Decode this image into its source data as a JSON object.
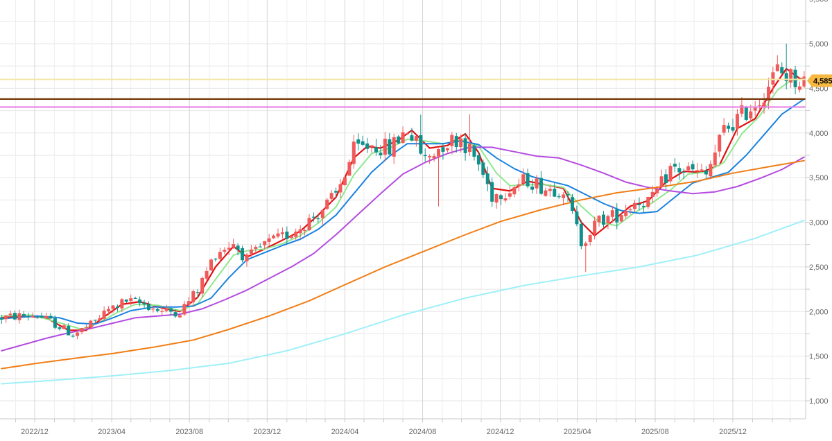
{
  "chart_data": {
    "type": "candlestick",
    "x_tick_labels": [
      "2022/12",
      "2023/04",
      "2023/08",
      "2023/12",
      "2024/04",
      "2024/08",
      "2024/12",
      "2025/04",
      "2025/08",
      "2025/12"
    ],
    "y_tick_labels": [
      "1,000",
      "1,500",
      "2,000",
      "2,500",
      "3,000",
      "3,500",
      "4,000",
      "4,500",
      "5,000",
      "5,500"
    ],
    "y_ticks": [
      1000,
      1500,
      2000,
      2500,
      3000,
      3500,
      4000,
      4500,
      5000,
      5500
    ],
    "ylim": [
      900,
      5500
    ],
    "xlim": [
      "2022-10-10",
      "2026-03-25"
    ],
    "grid": true,
    "last_price_label": "4,585",
    "last_price": 4585,
    "horizontal_levels": [
      {
        "name": "yellow-level",
        "value": 4600,
        "color": "#f3e7a6"
      },
      {
        "name": "brown-level",
        "value": 4380,
        "color": "#7a3d10"
      },
      {
        "name": "magenta-level",
        "value": 4290,
        "color": "#e77ee6"
      }
    ],
    "candles_source": "weekly OHLC",
    "anchors": [
      [
        "2022-10-10",
        1930
      ],
      [
        "2022-11-07",
        1950
      ],
      [
        "2022-12-05",
        1960
      ],
      [
        "2023-01-02",
        1860
      ],
      [
        "2023-01-30",
        1740
      ],
      [
        "2023-02-27",
        1850
      ],
      [
        "2023-03-27",
        2020
      ],
      [
        "2023-04-24",
        2120
      ],
      [
        "2023-05-22",
        2080
      ],
      [
        "2023-06-19",
        2000
      ],
      [
        "2023-07-17",
        2000
      ],
      [
        "2023-08-14",
        2240
      ],
      [
        "2023-09-11",
        2660
      ],
      [
        "2023-10-09",
        2770
      ],
      [
        "2023-10-30",
        2580
      ],
      [
        "2023-11-27",
        2750
      ],
      [
        "2023-12-25",
        2830
      ],
      [
        "2024-01-22",
        2950
      ],
      [
        "2024-02-19",
        3100
      ],
      [
        "2024-03-18",
        3300
      ],
      [
        "2024-04-15",
        3800
      ],
      [
        "2024-05-13",
        3870
      ],
      [
        "2024-06-10",
        3820
      ],
      [
        "2024-07-08",
        4050
      ],
      [
        "2024-08-05",
        3700
      ],
      [
        "2024-09-02",
        3880
      ],
      [
        "2024-09-30",
        3950
      ],
      [
        "2024-10-28",
        3650
      ],
      [
        "2024-11-18",
        3300
      ],
      [
        "2024-12-16",
        3380
      ],
      [
        "2025-01-13",
        3480
      ],
      [
        "2025-02-10",
        3380
      ],
      [
        "2025-03-10",
        3380
      ],
      [
        "2025-04-07",
        2780
      ],
      [
        "2025-05-05",
        3020
      ],
      [
        "2025-06-02",
        3080
      ],
      [
        "2025-06-30",
        3230
      ],
      [
        "2025-07-28",
        3250
      ],
      [
        "2025-08-25",
        3600
      ],
      [
        "2025-09-22",
        3580
      ],
      [
        "2025-10-20",
        3520
      ],
      [
        "2025-11-17",
        4030
      ],
      [
        "2025-12-15",
        4200
      ],
      [
        "2026-01-12",
        4380
      ],
      [
        "2026-02-09",
        4700
      ],
      [
        "2026-03-09",
        4600
      ],
      [
        "2026-03-23",
        4585
      ]
    ],
    "moving_averages": [
      {
        "name": "ma-red",
        "color": "#e01010",
        "width": 2.2,
        "points": [
          [
            "2022-10-10",
            1930
          ],
          [
            "2022-11-14",
            1950
          ],
          [
            "2022-12-19",
            1930
          ],
          [
            "2023-01-23",
            1790
          ],
          [
            "2023-02-20",
            1790
          ],
          [
            "2023-03-20",
            1940
          ],
          [
            "2023-04-17",
            2080
          ],
          [
            "2023-05-15",
            2110
          ],
          [
            "2023-06-19",
            2040
          ],
          [
            "2023-07-17",
            2000
          ],
          [
            "2023-08-14",
            2160
          ],
          [
            "2023-09-11",
            2500
          ],
          [
            "2023-10-09",
            2730
          ],
          [
            "2023-10-30",
            2610
          ],
          [
            "2023-11-27",
            2700
          ],
          [
            "2023-12-25",
            2800
          ],
          [
            "2024-01-22",
            2900
          ],
          [
            "2024-02-19",
            3080
          ],
          [
            "2024-03-18",
            3280
          ],
          [
            "2024-04-15",
            3720
          ],
          [
            "2024-05-06",
            3850
          ],
          [
            "2024-05-27",
            3830
          ],
          [
            "2024-06-24",
            3920
          ],
          [
            "2024-07-15",
            4030
          ],
          [
            "2024-08-12",
            3830
          ],
          [
            "2024-09-09",
            3860
          ],
          [
            "2024-10-07",
            3990
          ],
          [
            "2024-10-28",
            3780
          ],
          [
            "2024-11-18",
            3380
          ],
          [
            "2024-12-16",
            3350
          ],
          [
            "2025-01-13",
            3460
          ],
          [
            "2025-02-10",
            3420
          ],
          [
            "2025-03-10",
            3380
          ],
          [
            "2025-04-07",
            3000
          ],
          [
            "2025-04-28",
            2850
          ],
          [
            "2025-05-26",
            3010
          ],
          [
            "2025-06-23",
            3180
          ],
          [
            "2025-07-21",
            3240
          ],
          [
            "2025-08-18",
            3450
          ],
          [
            "2025-09-15",
            3570
          ],
          [
            "2025-10-13",
            3560
          ],
          [
            "2025-11-10",
            3640
          ],
          [
            "2025-12-08",
            4050
          ],
          [
            "2026-01-05",
            4160
          ],
          [
            "2026-02-02",
            4500
          ],
          [
            "2026-02-23",
            4720
          ],
          [
            "2026-03-16",
            4610
          ],
          [
            "2026-03-23",
            4600
          ]
        ]
      },
      {
        "name": "ma-green",
        "color": "#8fe88f",
        "width": 2,
        "points": [
          [
            "2022-10-10",
            1950
          ],
          [
            "2022-11-28",
            1960
          ],
          [
            "2023-01-16",
            1860
          ],
          [
            "2023-02-13",
            1800
          ],
          [
            "2023-03-13",
            1880
          ],
          [
            "2023-04-10",
            1990
          ],
          [
            "2023-05-08",
            2080
          ],
          [
            "2023-06-12",
            2070
          ],
          [
            "2023-07-17",
            2010
          ],
          [
            "2023-08-14",
            2090
          ],
          [
            "2023-09-11",
            2360
          ],
          [
            "2023-10-09",
            2630
          ],
          [
            "2023-10-30",
            2680
          ],
          [
            "2023-11-27",
            2700
          ],
          [
            "2023-12-25",
            2760
          ],
          [
            "2024-01-22",
            2850
          ],
          [
            "2024-02-19",
            2990
          ],
          [
            "2024-03-18",
            3170
          ],
          [
            "2024-04-15",
            3530
          ],
          [
            "2024-05-13",
            3770
          ],
          [
            "2024-06-10",
            3830
          ],
          [
            "2024-07-08",
            3930
          ],
          [
            "2024-08-05",
            3910
          ],
          [
            "2024-09-02",
            3880
          ],
          [
            "2024-09-30",
            3920
          ],
          [
            "2024-10-28",
            3850
          ],
          [
            "2024-11-25",
            3550
          ],
          [
            "2024-12-16",
            3410
          ],
          [
            "2025-01-13",
            3420
          ],
          [
            "2025-02-10",
            3420
          ],
          [
            "2025-03-10",
            3390
          ],
          [
            "2025-04-07",
            3180
          ],
          [
            "2025-05-05",
            3000
          ],
          [
            "2025-06-02",
            2960
          ],
          [
            "2025-06-30",
            3110
          ],
          [
            "2025-07-28",
            3220
          ],
          [
            "2025-08-25",
            3360
          ],
          [
            "2025-09-22",
            3540
          ],
          [
            "2025-10-20",
            3560
          ],
          [
            "2025-11-17",
            3670
          ],
          [
            "2025-12-15",
            3990
          ],
          [
            "2026-01-12",
            4190
          ],
          [
            "2026-02-09",
            4480
          ],
          [
            "2026-03-02",
            4590
          ],
          [
            "2026-03-23",
            4600
          ]
        ]
      },
      {
        "name": "ma-blue",
        "color": "#1a82e0",
        "width": 2,
        "points": [
          [
            "2022-10-10",
            1920
          ],
          [
            "2022-12-05",
            1950
          ],
          [
            "2023-01-09",
            1930
          ],
          [
            "2023-02-06",
            1870
          ],
          [
            "2023-03-06",
            1860
          ],
          [
            "2023-04-03",
            1930
          ],
          [
            "2023-05-01",
            2010
          ],
          [
            "2023-06-05",
            2050
          ],
          [
            "2023-07-10",
            2050
          ],
          [
            "2023-08-07",
            2060
          ],
          [
            "2023-09-04",
            2150
          ],
          [
            "2023-10-02",
            2380
          ],
          [
            "2023-10-30",
            2580
          ],
          [
            "2023-11-27",
            2660
          ],
          [
            "2023-12-25",
            2740
          ],
          [
            "2024-01-22",
            2810
          ],
          [
            "2024-02-19",
            2920
          ],
          [
            "2024-03-18",
            3080
          ],
          [
            "2024-04-15",
            3320
          ],
          [
            "2024-05-13",
            3560
          ],
          [
            "2024-06-10",
            3740
          ],
          [
            "2024-07-08",
            3880
          ],
          [
            "2024-08-05",
            3880
          ],
          [
            "2024-09-02",
            3880
          ],
          [
            "2024-09-30",
            3910
          ],
          [
            "2024-10-28",
            3870
          ],
          [
            "2024-11-25",
            3720
          ],
          [
            "2024-12-23",
            3600
          ],
          [
            "2025-01-20",
            3510
          ],
          [
            "2025-02-17",
            3460
          ],
          [
            "2025-03-17",
            3410
          ],
          [
            "2025-04-14",
            3310
          ],
          [
            "2025-05-12",
            3210
          ],
          [
            "2025-06-09",
            3130
          ],
          [
            "2025-07-07",
            3100
          ],
          [
            "2025-08-04",
            3120
          ],
          [
            "2025-09-01",
            3280
          ],
          [
            "2025-09-29",
            3440
          ],
          [
            "2025-10-27",
            3500
          ],
          [
            "2025-11-24",
            3560
          ],
          [
            "2025-12-22",
            3750
          ],
          [
            "2026-01-19",
            3980
          ],
          [
            "2026-02-16",
            4210
          ],
          [
            "2026-03-23",
            4380
          ]
        ]
      },
      {
        "name": "ma-purple",
        "color": "#b44be0",
        "width": 2,
        "points": [
          [
            "2022-10-10",
            1560
          ],
          [
            "2022-11-14",
            1630
          ],
          [
            "2022-12-19",
            1700
          ],
          [
            "2023-01-23",
            1760
          ],
          [
            "2023-02-27",
            1810
          ],
          [
            "2023-04-03",
            1870
          ],
          [
            "2023-05-08",
            1930
          ],
          [
            "2023-06-12",
            1950
          ],
          [
            "2023-07-17",
            1970
          ],
          [
            "2023-08-21",
            2030
          ],
          [
            "2023-09-25",
            2130
          ],
          [
            "2023-10-30",
            2240
          ],
          [
            "2023-12-04",
            2370
          ],
          [
            "2024-01-08",
            2500
          ],
          [
            "2024-02-12",
            2650
          ],
          [
            "2024-03-18",
            2860
          ],
          [
            "2024-04-22",
            3090
          ],
          [
            "2024-05-27",
            3320
          ],
          [
            "2024-07-01",
            3540
          ],
          [
            "2024-08-05",
            3670
          ],
          [
            "2024-09-09",
            3770
          ],
          [
            "2024-10-14",
            3840
          ],
          [
            "2024-11-18",
            3840
          ],
          [
            "2024-12-23",
            3790
          ],
          [
            "2025-01-27",
            3740
          ],
          [
            "2025-03-03",
            3720
          ],
          [
            "2025-04-07",
            3640
          ],
          [
            "2025-05-12",
            3550
          ],
          [
            "2025-06-16",
            3450
          ],
          [
            "2025-07-21",
            3390
          ],
          [
            "2025-08-25",
            3350
          ],
          [
            "2025-09-29",
            3320
          ],
          [
            "2025-11-03",
            3340
          ],
          [
            "2025-12-08",
            3400
          ],
          [
            "2026-01-12",
            3490
          ],
          [
            "2026-02-16",
            3590
          ],
          [
            "2026-03-23",
            3730
          ]
        ]
      },
      {
        "name": "ma-orange",
        "color": "#f07e16",
        "width": 2,
        "points": [
          [
            "2022-10-10",
            1360
          ],
          [
            "2022-12-05",
            1420
          ],
          [
            "2023-02-06",
            1480
          ],
          [
            "2023-04-03",
            1530
          ],
          [
            "2023-06-05",
            1600
          ],
          [
            "2023-08-07",
            1680
          ],
          [
            "2023-10-02",
            1800
          ],
          [
            "2023-12-04",
            1950
          ],
          [
            "2024-02-05",
            2120
          ],
          [
            "2024-04-01",
            2300
          ],
          [
            "2024-06-03",
            2500
          ],
          [
            "2024-08-05",
            2680
          ],
          [
            "2024-10-07",
            2860
          ],
          [
            "2024-12-02",
            3010
          ],
          [
            "2025-02-03",
            3140
          ],
          [
            "2025-04-07",
            3250
          ],
          [
            "2025-06-02",
            3330
          ],
          [
            "2025-08-04",
            3390
          ],
          [
            "2025-10-06",
            3460
          ],
          [
            "2025-12-01",
            3550
          ],
          [
            "2026-02-02",
            3630
          ],
          [
            "2026-03-23",
            3690
          ]
        ]
      },
      {
        "name": "ma-cyan",
        "color": "#9ff0f8",
        "width": 2,
        "points": [
          [
            "2022-10-10",
            1190
          ],
          [
            "2023-01-02",
            1230
          ],
          [
            "2023-04-03",
            1280
          ],
          [
            "2023-07-03",
            1340
          ],
          [
            "2023-10-02",
            1420
          ],
          [
            "2024-01-01",
            1560
          ],
          [
            "2024-04-01",
            1750
          ],
          [
            "2024-07-01",
            1960
          ],
          [
            "2024-10-07",
            2150
          ],
          [
            "2025-01-06",
            2290
          ],
          [
            "2025-04-07",
            2400
          ],
          [
            "2025-07-07",
            2500
          ],
          [
            "2025-10-06",
            2630
          ],
          [
            "2026-01-05",
            2820
          ],
          [
            "2026-03-23",
            3020
          ]
        ]
      }
    ],
    "spikes": [
      {
        "date": "2024-10-14",
        "dir": "up",
        "size": 330
      },
      {
        "date": "2024-08-26",
        "dir": "down",
        "size": 560
      },
      {
        "date": "2025-04-14",
        "dir": "down",
        "size": 290
      },
      {
        "date": "2026-02-23",
        "dir": "up",
        "size": 330
      },
      {
        "date": "2024-07-29",
        "dir": "up",
        "size": 230
      }
    ],
    "colors": {
      "up": "#f05a5a",
      "down": "#10908a",
      "grid": "#e6e6e6",
      "tag_bg": "#f5b942"
    }
  }
}
